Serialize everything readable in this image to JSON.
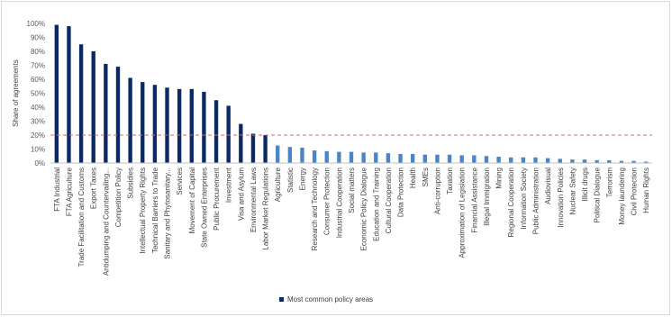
{
  "chart_data": {
    "type": "bar",
    "ylabel": "Share of agreements",
    "ylim": [
      0,
      100
    ],
    "yticks": [
      "0%",
      "10%",
      "20%",
      "30%",
      "40%",
      "50%",
      "60%",
      "70%",
      "80%",
      "90%",
      "100%"
    ],
    "grid": false,
    "reference_line": {
      "value": 20,
      "style": "dashed",
      "color": "#e06666"
    },
    "colors": {
      "common": "#0b2a63",
      "other": "#4a86c5"
    },
    "legend": {
      "position": "bottom",
      "label": "Most common policy areas"
    },
    "categories": [
      "FTA Industrial",
      "FTA Agriculture",
      "Trade Facilitation and Customs",
      "Export Taxes",
      "Antidumping and Countervailing...",
      "Competition Policy",
      "Subsidies",
      "Intellectual Property Rights",
      "Technical Barriers to Trade",
      "Sanitary and Phytosanitary...",
      "Services",
      "Movement of Capital",
      "State Owned Enterprises",
      "Public Procurement",
      "Investment",
      "Visa and Asylum",
      "Environmental Laws",
      "Labor Market Regulations",
      "Agriculture",
      "Statistic",
      "Energy",
      "Research and Technology",
      "Consumer Protection",
      "Industrial Cooperation",
      "Social matters",
      "Economic Policy Dialogue",
      "Education and Training",
      "Cultural Cooperation",
      "Data Protection",
      "Health",
      "SMEs",
      "Anti-corruption",
      "Taxation",
      "Approximation of Legislation",
      "Financial Assistance",
      "Illegal Immigration",
      "Mining",
      "Regional Cooperation",
      "Information Society",
      "Public Administration",
      "Audiovisual",
      "Innovation Policies",
      "Nuclear Safety",
      "Illicit drugs",
      "Political Dialogue",
      "Terrorism",
      "Money laundering",
      "Civil Protection",
      "Human Rights"
    ],
    "values": [
      99,
      98,
      85,
      80,
      71,
      69,
      61,
      58,
      56,
      54,
      53,
      53,
      51,
      45,
      41,
      28,
      21,
      20,
      12.5,
      11.5,
      11,
      9,
      8.5,
      8,
      8,
      7.5,
      7.5,
      7,
      6.5,
      6.5,
      6,
      6,
      6,
      5.5,
      5.5,
      5,
      4.5,
      4,
      4,
      4,
      3.5,
      3,
      2.5,
      2.5,
      2,
      2,
      1.5,
      1.5,
      1
    ],
    "common_count": 18
  }
}
